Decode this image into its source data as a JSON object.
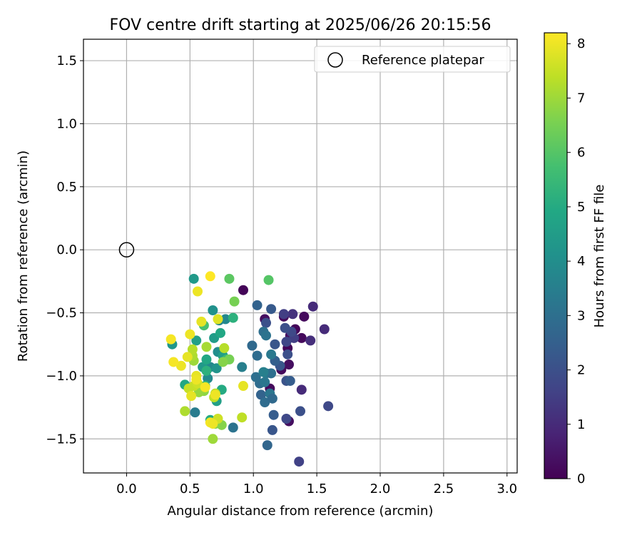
{
  "chart_data": {
    "type": "scatter",
    "title": "FOV centre drift starting at 2025/06/26 20:15:56",
    "xlabel": "Angular distance from reference (arcmin)",
    "ylabel": "Rotation from reference (arcmin)",
    "xlim": [
      -0.34,
      3.08
    ],
    "ylim": [
      -1.77,
      1.67
    ],
    "xticks": [
      "0.0",
      "0.5",
      "1.0",
      "1.5",
      "2.0",
      "2.5",
      "3.0"
    ],
    "yticks": [
      "1.5",
      "1.0",
      "0.5",
      "0.0",
      "−0.5",
      "−1.0",
      "−1.5"
    ],
    "grid": true,
    "legend": {
      "position": "top-right",
      "entries": [
        "Reference platepar"
      ]
    },
    "reference_point": {
      "x": 0.0,
      "y": 0.0
    },
    "colorbar": {
      "label": "Hours from first FF file",
      "colormap": "viridis",
      "range": [
        0,
        8.2
      ],
      "ticks": [
        "0",
        "1",
        "2",
        "3",
        "4",
        "5",
        "6",
        "7",
        "8"
      ]
    },
    "points": [
      [
        0.92,
        -0.32,
        0.1
      ],
      [
        1.09,
        -0.55,
        0.3
      ],
      [
        1.24,
        -0.53,
        0.2
      ],
      [
        1.4,
        -0.53,
        0.2
      ],
      [
        1.33,
        -0.63,
        0.1
      ],
      [
        1.38,
        -0.7,
        0.2
      ],
      [
        1.29,
        -0.68,
        0.4
      ],
      [
        1.27,
        -0.78,
        0.1
      ],
      [
        1.22,
        -0.95,
        0.2
      ],
      [
        1.28,
        -0.91,
        0.3
      ],
      [
        1.13,
        -1.1,
        0.2
      ],
      [
        1.28,
        -1.36,
        0.3
      ],
      [
        1.47,
        -0.45,
        1.0
      ],
      [
        1.31,
        -0.51,
        1.2
      ],
      [
        1.56,
        -0.63,
        1.0
      ],
      [
        1.45,
        -0.72,
        1.1
      ],
      [
        1.38,
        -1.11,
        1.0
      ],
      [
        1.24,
        -0.51,
        1.5
      ],
      [
        1.32,
        -0.7,
        1.5
      ],
      [
        1.3,
        -0.65,
        1.8
      ],
      [
        1.25,
        -0.62,
        2.0
      ],
      [
        1.26,
        -0.73,
        1.7
      ],
      [
        1.17,
        -0.75,
        2.2
      ],
      [
        1.27,
        -0.83,
        2.0
      ],
      [
        1.1,
        -0.58,
        2.0
      ],
      [
        1.14,
        -0.47,
        2.3
      ],
      [
        1.59,
        -1.24,
        1.8
      ],
      [
        1.37,
        -1.28,
        2.0
      ],
      [
        1.26,
        -1.34,
        1.8
      ],
      [
        1.36,
        -1.68,
        1.6
      ],
      [
        1.21,
        -0.92,
        2.2
      ],
      [
        1.17,
        -0.88,
        2.5
      ],
      [
        1.26,
        -1.04,
        2.1
      ],
      [
        1.29,
        -1.04,
        2.4
      ],
      [
        1.15,
        -1.43,
        2.2
      ],
      [
        1.16,
        -1.31,
        2.4
      ],
      [
        1.11,
        -1.55,
        2.7
      ],
      [
        1.03,
        -0.44,
        2.6
      ],
      [
        1.08,
        -0.65,
        3.0
      ],
      [
        1.1,
        -0.68,
        3.1
      ],
      [
        0.99,
        -0.76,
        2.8
      ],
      [
        1.03,
        -0.84,
        2.9
      ],
      [
        1.14,
        -0.83,
        3.3
      ],
      [
        1.05,
        -1.06,
        2.9
      ],
      [
        1.06,
        -1.15,
        2.6
      ],
      [
        1.09,
        -1.21,
        2.9
      ],
      [
        1.13,
        -1.14,
        3.2
      ],
      [
        1.15,
        -1.18,
        2.8
      ],
      [
        1.02,
        -1.01,
        3.0
      ],
      [
        1.09,
        -1.05,
        3.2
      ],
      [
        1.1,
        -0.98,
        3.3
      ],
      [
        1.14,
        -0.98,
        3.0
      ],
      [
        1.08,
        -0.97,
        3.5
      ],
      [
        0.84,
        -1.41,
        3.1
      ],
      [
        0.91,
        -0.93,
        3.5
      ],
      [
        0.73,
        -0.56,
        3.7
      ],
      [
        0.78,
        -0.55,
        3.8
      ],
      [
        0.54,
        -1.29,
        3.4
      ],
      [
        0.68,
        -0.48,
        4.1
      ],
      [
        0.72,
        -0.81,
        4.0
      ],
      [
        0.66,
        -0.93,
        3.8
      ],
      [
        0.71,
        -0.94,
        4.2
      ],
      [
        0.64,
        -1.02,
        3.9
      ],
      [
        0.6,
        -0.93,
        4.4
      ],
      [
        0.69,
        -0.7,
        4.5
      ],
      [
        0.55,
        -0.72,
        4.6
      ],
      [
        0.53,
        -0.23,
        4.4
      ],
      [
        0.36,
        -0.75,
        4.3
      ],
      [
        0.74,
        -0.66,
        4.9
      ],
      [
        0.76,
        -0.84,
        4.6
      ],
      [
        0.63,
        -0.87,
        4.9
      ],
      [
        0.71,
        -1.2,
        4.6
      ],
      [
        0.75,
        -1.11,
        5.0
      ],
      [
        0.46,
        -1.07,
        4.9
      ],
      [
        0.84,
        -0.54,
        5.2
      ],
      [
        0.66,
        -1.35,
        5.0
      ],
      [
        0.79,
        -0.87,
        5.5
      ],
      [
        0.63,
        -0.96,
        5.2
      ],
      [
        0.62,
        -1.08,
        5.4
      ],
      [
        0.61,
        -0.6,
        5.8
      ],
      [
        0.81,
        -0.23,
        6.1
      ],
      [
        1.12,
        -0.24,
        6.0
      ],
      [
        0.85,
        -0.41,
        6.5
      ],
      [
        0.81,
        -0.87,
        6.5
      ],
      [
        0.76,
        -0.89,
        6.7
      ],
      [
        0.7,
        -1.38,
        6.6
      ],
      [
        0.75,
        -1.39,
        6.7
      ],
      [
        0.61,
        -1.12,
        6.8
      ],
      [
        0.57,
        -1.13,
        6.9
      ],
      [
        0.53,
        -0.88,
        7.0
      ],
      [
        0.52,
        -0.84,
        7.2
      ],
      [
        0.52,
        -0.79,
        7.3
      ],
      [
        0.77,
        -0.78,
        7.3
      ],
      [
        0.63,
        -0.77,
        7.1
      ],
      [
        0.46,
        -1.28,
        7.2
      ],
      [
        0.68,
        -1.5,
        7.0
      ],
      [
        0.7,
        -1.14,
        7.3
      ],
      [
        0.69,
        -1.17,
        7.4
      ],
      [
        0.49,
        -1.1,
        7.5
      ],
      [
        0.53,
        -1.08,
        7.5
      ],
      [
        0.56,
        -1.06,
        7.6
      ],
      [
        0.55,
        -1.0,
        7.9
      ],
      [
        0.91,
        -1.33,
        7.4
      ],
      [
        0.72,
        -1.34,
        7.6
      ],
      [
        0.72,
        -0.55,
        7.8
      ],
      [
        0.92,
        -1.08,
        7.9
      ],
      [
        0.59,
        -0.57,
        7.9
      ],
      [
        0.5,
        -0.67,
        8.0
      ],
      [
        0.48,
        -0.85,
        7.9
      ],
      [
        0.43,
        -0.92,
        8.0
      ],
      [
        0.35,
        -0.71,
        8.1
      ],
      [
        0.37,
        -0.89,
        8.1
      ],
      [
        0.51,
        -1.16,
        7.9
      ],
      [
        0.55,
        -1.03,
        8.0
      ],
      [
        0.66,
        -1.37,
        8.1
      ],
      [
        0.68,
        -1.38,
        8.0
      ],
      [
        0.66,
        -0.21,
        8.2
      ],
      [
        0.56,
        -0.33,
        8.0
      ],
      [
        0.62,
        -1.09,
        8.1
      ],
      [
        0.7,
        -1.15,
        8.0
      ]
    ]
  }
}
